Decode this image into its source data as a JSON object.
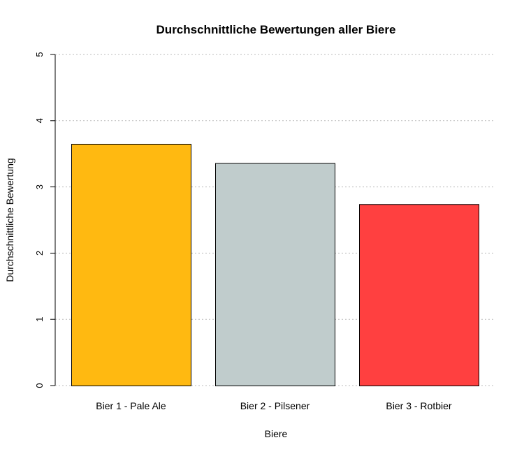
{
  "chart_data": {
    "type": "bar",
    "title": "Durchschnittliche Bewertungen aller Biere",
    "xlabel": "Biere",
    "ylabel": "Durchschnittliche Bewertung",
    "categories": [
      "Bier 1 - Pale Ale",
      "Bier 2 - Pilsener",
      "Bier 3 - Rotbier"
    ],
    "values": [
      3.65,
      3.36,
      2.74
    ],
    "colors": [
      "#FFB911",
      "#C0CCCC",
      "#FF4040"
    ],
    "ylim": [
      0,
      5
    ],
    "yticks": [
      "0",
      "1",
      "2",
      "3",
      "4",
      "5"
    ],
    "grid": true,
    "grid_style": "dotted horizontal",
    "grid_color": "#BBBBBB",
    "legend": "none"
  }
}
